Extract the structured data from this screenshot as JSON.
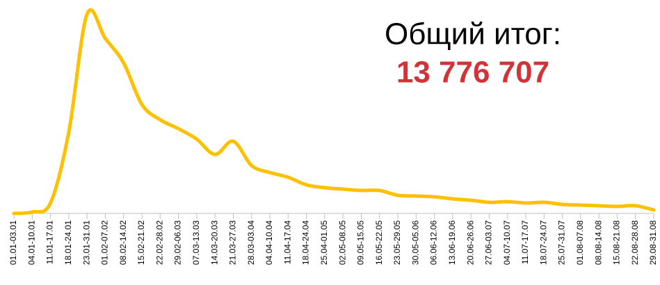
{
  "chart_data": {
    "type": "line",
    "annotations": [
      "Общий итог:",
      "13 776 707"
    ],
    "categories": [
      "01.01-03.01",
      "04.01-10.01",
      "11.01-17.01",
      "18.01-24.01",
      "23.01-31.01",
      "01.02-07.02",
      "08.02-14.02",
      "15.02-21.02",
      "22.02-28.02",
      "29.02-06.03",
      "07.03-13.03",
      "14.03-20.03",
      "21.03-27.03",
      "28.03-03.04",
      "04.04-10.04",
      "11.04-17.04",
      "18.04-24.04",
      "25.04-01.05",
      "02.05-08.05",
      "09.05-15.05",
      "16.05-22.05",
      "23.05-29.05",
      "30.05-05.06",
      "06.06-12.06",
      "13.06-19.06",
      "20.06-26.06",
      "27.06-03.07",
      "04.07-10.07",
      "11.07-17.07",
      "18.07-24.07",
      "25.07-31.07",
      "01.08-07.08",
      "08.08-14.08",
      "15.08-21.08",
      "22.08-28.08",
      "29.08-31.08"
    ],
    "series": [
      {
        "name": "Общий итог",
        "color": "#ffc000",
        "values": [
          0,
          12500,
          94000,
          732000,
          1797000,
          1578000,
          1358000,
          983000,
          845000,
          764000,
          670000,
          532000,
          651000,
          432000,
          369000,
          326000,
          257000,
          232000,
          219000,
          207000,
          207000,
          163000,
          157000,
          150000,
          131000,
          119000,
          100000,
          106000,
          94000,
          100000,
          81000,
          75000,
          69000,
          63000,
          69000,
          31000
        ]
      }
    ],
    "ylim": [
      0,
      1850000
    ]
  }
}
